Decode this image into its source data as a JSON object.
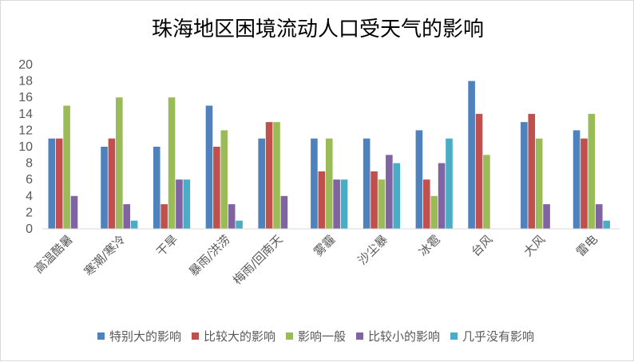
{
  "chart_data": {
    "type": "bar",
    "title": "珠海地区困境流动人口受天气的影响",
    "xlabel": "",
    "ylabel": "",
    "ylim": [
      0,
      20
    ],
    "yticks": [
      0,
      2,
      4,
      6,
      8,
      10,
      12,
      14,
      16,
      18,
      20
    ],
    "grid": false,
    "legend_position": "bottom",
    "categories": [
      "高温酷暑",
      "寒潮/寒冷",
      "干旱",
      "暴雨/洪涝",
      "梅雨/回南天",
      "雾霾",
      "沙尘暴",
      "冰雹",
      "台风",
      "大风",
      "雷电"
    ],
    "series": [
      {
        "name": "特别大的影响",
        "color": "#4f81bd",
        "values": [
          11,
          10,
          10,
          15,
          11,
          11,
          11,
          12,
          18,
          13,
          12
        ]
      },
      {
        "name": "比较大的影响",
        "color": "#c0504d",
        "values": [
          11,
          11,
          3,
          10,
          13,
          7,
          7,
          6,
          14,
          14,
          11
        ]
      },
      {
        "name": "影响一般",
        "color": "#9bbb59",
        "values": [
          15,
          16,
          16,
          12,
          13,
          11,
          6,
          4,
          9,
          11,
          14
        ]
      },
      {
        "name": "比较小的影响",
        "color": "#8064a2",
        "values": [
          4,
          3,
          6,
          3,
          4,
          6,
          9,
          8,
          0,
          3,
          3
        ]
      },
      {
        "name": "几乎没有影响",
        "color": "#4bacc6",
        "values": [
          0,
          1,
          6,
          1,
          0,
          6,
          8,
          11,
          0,
          0,
          1
        ]
      }
    ]
  }
}
